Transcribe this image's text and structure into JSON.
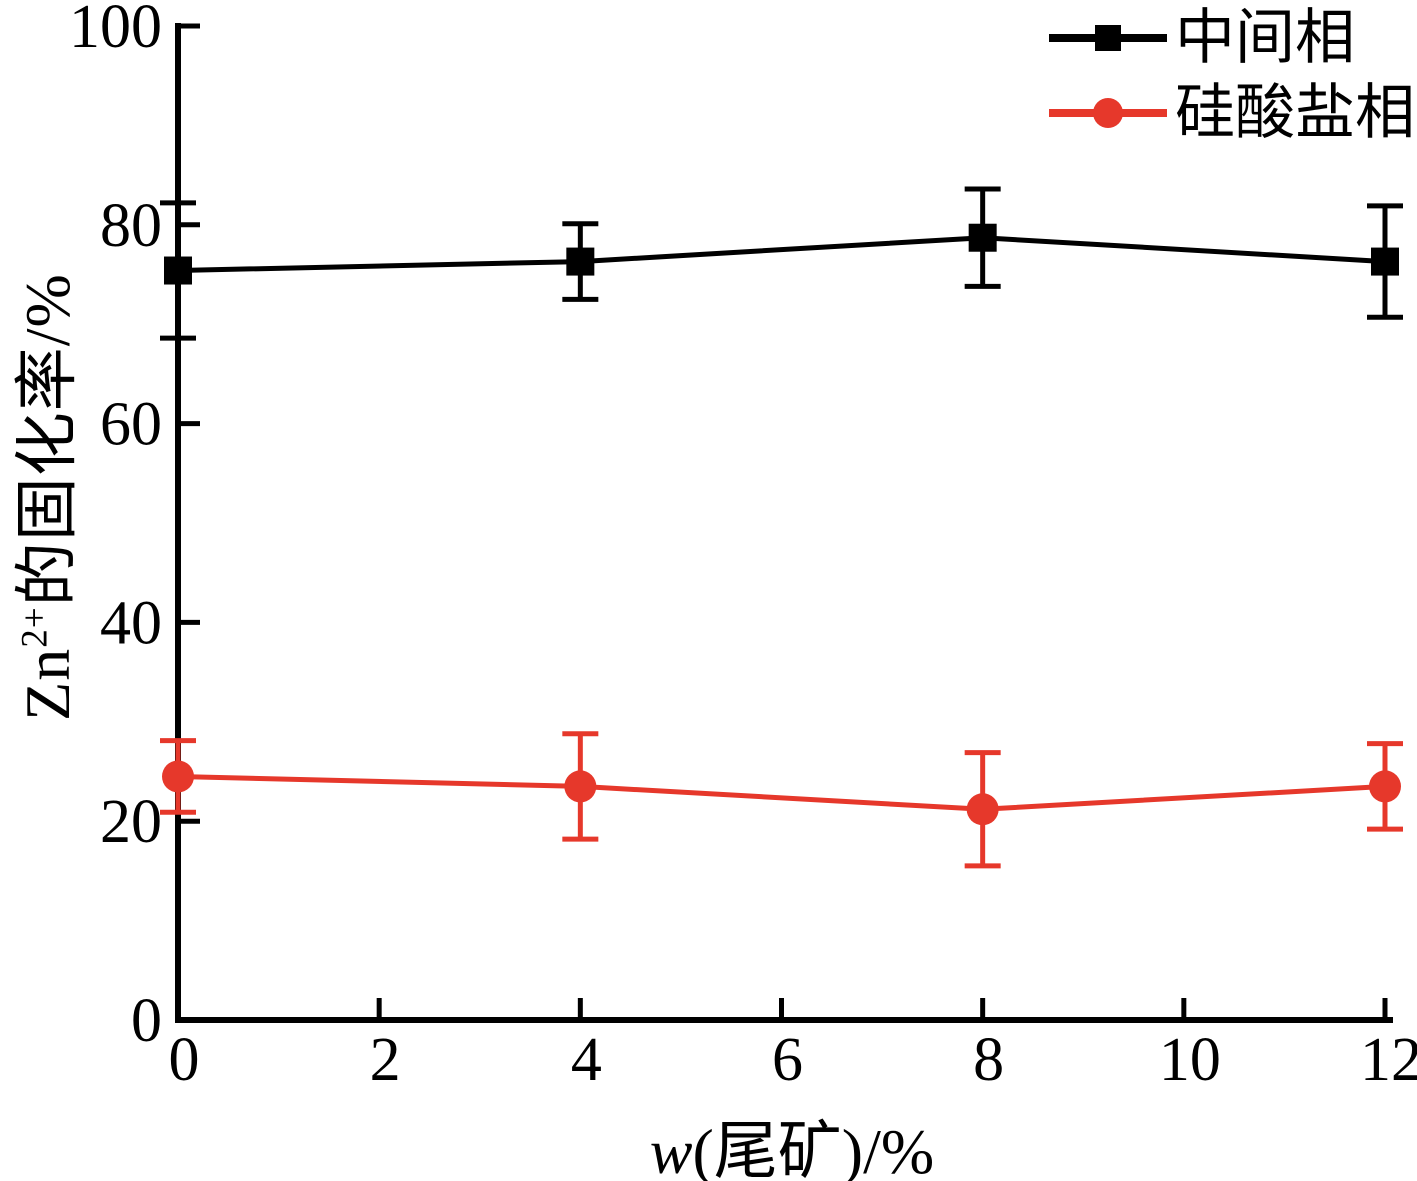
{
  "figure": {
    "background": "#ffffff",
    "axis_color": "#000000"
  },
  "chart_data": {
    "type": "line",
    "x": [
      0,
      4,
      8,
      12
    ],
    "series": [
      {
        "name": "中间相",
        "color": "#000000",
        "marker": "square",
        "values": [
          75.4,
          76.3,
          78.7,
          76.3
        ],
        "errors": [
          6.8,
          3.8,
          4.9,
          5.6
        ]
      },
      {
        "name": "硅酸盐相",
        "color": "#e6382b",
        "marker": "circle",
        "values": [
          24.5,
          23.5,
          21.2,
          23.5
        ],
        "errors": [
          3.6,
          5.3,
          5.7,
          4.3
        ]
      }
    ],
    "xlabel": "w(尾矿)/%",
    "ylabel": "Zn²⁺的固化率/%",
    "xlabel_parts": {
      "italic": "w",
      "rest": "(尾矿)/%"
    },
    "ylabel_parts": {
      "base": "Zn",
      "sup": "2+",
      "rest": "的固化率/%"
    },
    "xlim": [
      0,
      12
    ],
    "ylim": [
      0,
      100
    ],
    "x_ticks": [
      0,
      2,
      4,
      6,
      8,
      10,
      12
    ],
    "y_ticks": [
      0,
      20,
      40,
      60,
      80,
      100
    ],
    "grid": false,
    "legend_position": "top-right"
  }
}
